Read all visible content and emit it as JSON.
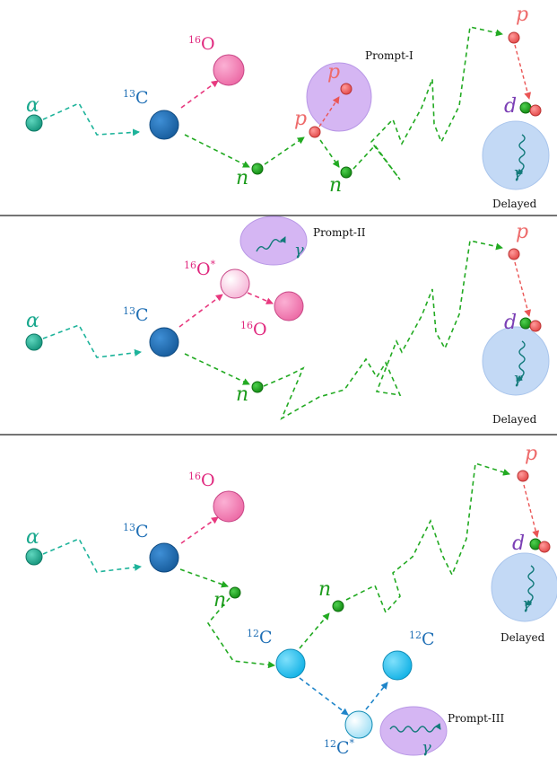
{
  "colors": {
    "alpha": "#1aa88e",
    "c13": "#1f6fb5",
    "o16": "#f37fb6",
    "o16_excited": "#fbd0e6",
    "c12": "#28c4ee",
    "c12_excited": "#b5ecfb",
    "neutron": "#1c9c1c",
    "proton": "#ee6b6b",
    "deuteron_label": "#7b3fb5",
    "prompt_region": "#d5b6f3",
    "delayed_region": "#c3d9f5",
    "arrow_alpha": "#1db39a",
    "arrow_o16": "#e8397f",
    "arrow_neutron": "#22aa22",
    "arrow_proton": "#ea5555",
    "arrow_c12": "#1f85c9",
    "gamma": "#127a7a"
  },
  "labels": {
    "alpha": "α",
    "n": "n",
    "p": "p",
    "d": "d",
    "gamma": "γ",
    "c13_mass": "13",
    "c12_mass": "12",
    "o16_mass": "16",
    "carbon": "C",
    "oxygen": "O",
    "excited_mark": "*",
    "prompt_1": "Prompt-I",
    "prompt_2": "Prompt-II",
    "prompt_3": "Prompt-III",
    "delayed": "Delayed"
  }
}
